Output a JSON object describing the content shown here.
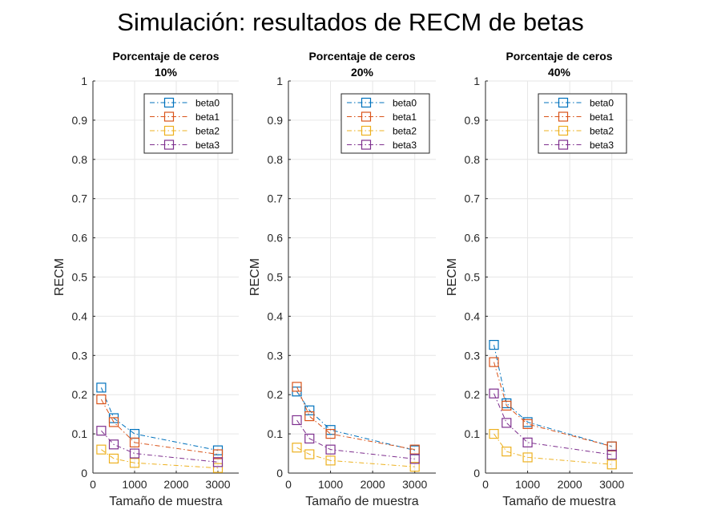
{
  "figure": {
    "title": "Simulación: resultados de RECM de betas"
  },
  "colors": {
    "beta0": "#0072BD",
    "beta1": "#D95319",
    "beta2": "#EDB120",
    "beta3": "#7E2F8E",
    "grid": "#e6e6e6",
    "axis": "#262626"
  },
  "chart_data": [
    {
      "type": "line",
      "title": "Porcentaje de ceros",
      "subtitle": "10%",
      "xlabel": "Tamaño de muestra",
      "ylabel": "RECM",
      "xlim": [
        0,
        3500
      ],
      "ylim": [
        0,
        1
      ],
      "xticks": [
        0,
        1000,
        2000,
        3000
      ],
      "yticks": [
        0,
        0.1,
        0.2,
        0.3,
        0.4,
        0.5,
        0.6,
        0.7,
        0.8,
        0.9,
        1
      ],
      "grid": true,
      "legend_position": "top-right",
      "x": [
        200,
        500,
        1000,
        3000
      ],
      "series": [
        {
          "name": "beta0",
          "values": [
            0.218,
            0.14,
            0.1,
            0.058
          ]
        },
        {
          "name": "beta1",
          "values": [
            0.188,
            0.13,
            0.078,
            0.048
          ]
        },
        {
          "name": "beta2",
          "values": [
            0.06,
            0.037,
            0.026,
            0.013
          ]
        },
        {
          "name": "beta3",
          "values": [
            0.108,
            0.073,
            0.05,
            0.028
          ]
        }
      ]
    },
    {
      "type": "line",
      "title": "Porcentaje de ceros",
      "subtitle": "20%",
      "xlabel": "Tamaño de muestra",
      "ylabel": "RECM",
      "xlim": [
        0,
        3500
      ],
      "ylim": [
        0,
        1
      ],
      "xticks": [
        0,
        1000,
        2000,
        3000
      ],
      "yticks": [
        0,
        0.1,
        0.2,
        0.3,
        0.4,
        0.5,
        0.6,
        0.7,
        0.8,
        0.9,
        1
      ],
      "grid": true,
      "legend_position": "top-right",
      "x": [
        200,
        500,
        1000,
        3000
      ],
      "series": [
        {
          "name": "beta0",
          "values": [
            0.208,
            0.16,
            0.11,
            0.058
          ]
        },
        {
          "name": "beta1",
          "values": [
            0.22,
            0.145,
            0.1,
            0.06
          ]
        },
        {
          "name": "beta2",
          "values": [
            0.065,
            0.048,
            0.032,
            0.016
          ]
        },
        {
          "name": "beta3",
          "values": [
            0.135,
            0.088,
            0.06,
            0.036
          ]
        }
      ]
    },
    {
      "type": "line",
      "title": "Porcentaje de ceros",
      "subtitle": "40%",
      "xlabel": "Tamaño de muestra",
      "ylabel": "RECM",
      "xlim": [
        0,
        3500
      ],
      "ylim": [
        0,
        1
      ],
      "xticks": [
        0,
        1000,
        2000,
        3000
      ],
      "yticks": [
        0,
        0.1,
        0.2,
        0.3,
        0.4,
        0.5,
        0.6,
        0.7,
        0.8,
        0.9,
        1
      ],
      "grid": true,
      "legend_position": "top-right",
      "x": [
        200,
        500,
        1000,
        3000
      ],
      "series": [
        {
          "name": "beta0",
          "values": [
            0.327,
            0.178,
            0.13,
            0.068
          ]
        },
        {
          "name": "beta1",
          "values": [
            0.283,
            0.172,
            0.125,
            0.068
          ]
        },
        {
          "name": "beta2",
          "values": [
            0.1,
            0.055,
            0.04,
            0.022
          ]
        },
        {
          "name": "beta3",
          "values": [
            0.203,
            0.128,
            0.078,
            0.047
          ]
        }
      ]
    }
  ]
}
